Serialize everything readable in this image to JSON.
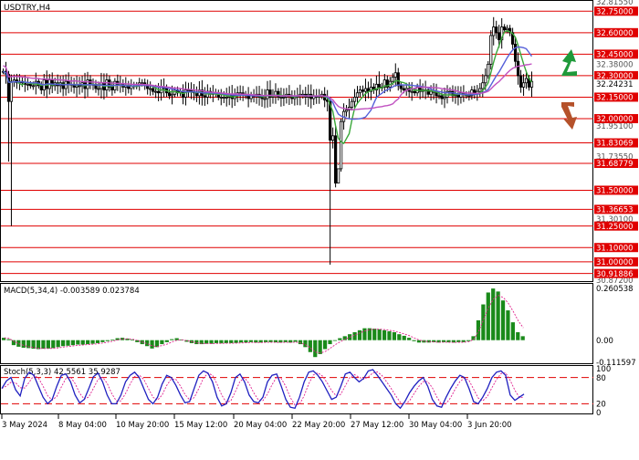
{
  "chart_data": [
    {
      "type": "candlestick",
      "title": "USDTRY,H4",
      "ylim": [
        30.872,
        32.8155
      ],
      "price_axis_ticks": [
        "32.81550",
        "32.38000",
        "31.95100",
        "31.73550",
        "31.30100",
        "30.87200"
      ],
      "level_lines": [
        {
          "value": 32.75,
          "label": "32.75000"
        },
        {
          "value": 32.6,
          "label": "32.60000"
        },
        {
          "value": 32.45,
          "label": "32.45000"
        },
        {
          "value": 32.3,
          "label": "32.30000"
        },
        {
          "value": 32.15,
          "label": "32.15000"
        },
        {
          "value": 32.0,
          "label": "32.00000"
        },
        {
          "value": 31.83069,
          "label": "31.83069"
        },
        {
          "value": 31.68779,
          "label": "31.68779"
        },
        {
          "value": 31.5,
          "label": "31.50000"
        },
        {
          "value": 31.36653,
          "label": "31.36653"
        },
        {
          "value": 31.25,
          "label": "31.25000"
        },
        {
          "value": 31.1,
          "label": "31.10000"
        },
        {
          "value": 31.0,
          "label": "31.00000"
        },
        {
          "value": 30.91886,
          "label": "30.91886"
        }
      ],
      "current_price": {
        "value": 32.24231,
        "label": "32.24231"
      },
      "time_labels": [
        "3 May 2024",
        "8 May 04:00",
        "10 May 20:00",
        "15 May 12:00",
        "20 May 04:00",
        "22 May 20:00",
        "27 May 12:00",
        "30 May 04:00",
        "3 Jun 20:00"
      ],
      "close_values": [
        32.33,
        32.31,
        32.12,
        32.26,
        32.27,
        32.25,
        32.26,
        32.25,
        32.24,
        32.24,
        32.23,
        32.23,
        32.26,
        32.23,
        32.2,
        32.27,
        32.21,
        32.27,
        32.23,
        32.25,
        32.23,
        32.25,
        32.21,
        32.26,
        32.24,
        32.24,
        32.22,
        32.23,
        32.23,
        32.25,
        32.21,
        32.27,
        32.24,
        32.24,
        32.21,
        32.21,
        32.25,
        32.2,
        32.27,
        32.22,
        32.2,
        32.26,
        32.24,
        32.24,
        32.22,
        32.23,
        32.21,
        32.23,
        32.23,
        32.23,
        32.25,
        32.25,
        32.23,
        32.21,
        32.21,
        32.19,
        32.19,
        32.18,
        32.22,
        32.21,
        32.18,
        32.16,
        32.17,
        32.2,
        32.18,
        32.19,
        32.15,
        32.2,
        32.2,
        32.19,
        32.18,
        32.16,
        32.2,
        32.16,
        32.15,
        32.19,
        32.17,
        32.18,
        32.18,
        32.15,
        32.15,
        32.15,
        32.15,
        32.17,
        32.14,
        32.16,
        32.18,
        32.18,
        32.17,
        32.16,
        32.14,
        32.16,
        32.16,
        32.17,
        32.15,
        32.14,
        32.14,
        32.2,
        32.15,
        32.16,
        32.19,
        32.15,
        32.15,
        32.15,
        32.17,
        32.16,
        32.14,
        32.15,
        32.16,
        32.17,
        32.17,
        32.15,
        32.17,
        32.14,
        32.16,
        32.15,
        32.16,
        32.17,
        32.13,
        32.12,
        31.85,
        31.88,
        31.55,
        31.65,
        31.98,
        32.05,
        32.06,
        32.08,
        32.12,
        32.15,
        32.18,
        32.2,
        32.19,
        32.21,
        32.19,
        32.22,
        32.2,
        32.24,
        32.22,
        32.22,
        32.27,
        32.22,
        32.26,
        32.29,
        32.32,
        32.23,
        32.21,
        32.2,
        32.21,
        32.19,
        32.19,
        32.18,
        32.22,
        32.19,
        32.2,
        32.2,
        32.17,
        32.19,
        32.19,
        32.16,
        32.16,
        32.14,
        32.15,
        32.19,
        32.19,
        32.16,
        32.17,
        32.15,
        32.18,
        32.17,
        32.16,
        32.16,
        32.2,
        32.17,
        32.19,
        32.21,
        32.25,
        32.3,
        32.38,
        32.58,
        32.64,
        32.6,
        32.55,
        32.64,
        32.62,
        32.63,
        32.6,
        32.52,
        32.4,
        32.3,
        32.22,
        32.25,
        32.28,
        32.22,
        32.26
      ],
      "moving_averages": [
        {
          "name": "MA fast",
          "color": "#3aa83a"
        },
        {
          "name": "MA mid",
          "color": "#5560d9"
        },
        {
          "name": "MA slow",
          "color": "#c050c0"
        }
      ],
      "arrows": [
        {
          "direction": "up",
          "color": "#1f9a3a"
        },
        {
          "direction": "down",
          "color": "#b5512a"
        }
      ],
      "colors": {
        "level_line": "#e00000",
        "level_label_bg": "#e00000",
        "candle": "#000000"
      }
    },
    {
      "type": "bar",
      "title": "MACD(5,34,4) -0.003589 0.023784",
      "indicator": "MACD",
      "params": "5,34,4",
      "main_value": -0.003589,
      "signal_value": 0.023784,
      "ylim": [
        -0.111597,
        0.260538
      ],
      "axis_labels": [
        "0.260538",
        "0.00",
        "-0.111597"
      ],
      "histogram": [
        0.012,
        0.005,
        -0.025,
        -0.033,
        -0.038,
        -0.04,
        -0.043,
        -0.045,
        -0.043,
        -0.042,
        -0.04,
        -0.035,
        -0.03,
        -0.028,
        -0.025,
        -0.022,
        -0.022,
        -0.02,
        -0.018,
        -0.015,
        -0.01,
        -0.005,
        0.002,
        0.01,
        0.012,
        0.008,
        0.002,
        -0.01,
        -0.02,
        -0.03,
        -0.042,
        -0.035,
        -0.02,
        -0.01,
        0.005,
        0.01,
        0.003,
        -0.008,
        -0.015,
        -0.02,
        -0.02,
        -0.018,
        -0.018,
        -0.015,
        -0.016,
        -0.015,
        -0.015,
        -0.014,
        -0.012,
        -0.012,
        -0.01,
        -0.012,
        -0.012,
        -0.01,
        -0.01,
        -0.011,
        -0.012,
        -0.01,
        -0.012,
        -0.008,
        -0.02,
        -0.035,
        -0.06,
        -0.085,
        -0.07,
        -0.045,
        -0.02,
        0.0,
        0.01,
        0.02,
        0.03,
        0.04,
        0.05,
        0.06,
        0.06,
        0.058,
        0.055,
        0.05,
        0.045,
        0.04,
        0.03,
        0.022,
        0.012,
        -0.005,
        -0.012,
        -0.012,
        -0.012,
        -0.01,
        -0.012,
        -0.01,
        -0.011,
        -0.012,
        -0.01,
        -0.01,
        -0.005,
        0.02,
        0.1,
        0.18,
        0.24,
        0.26,
        0.245,
        0.2,
        0.15,
        0.09,
        0.04,
        0.02
      ],
      "colors": {
        "histogram": "#1a8a1a",
        "signal": "#e0208a"
      }
    },
    {
      "type": "line",
      "title": "Stoch(5,3,3) 42.5561 35.9287",
      "indicator": "Stochastic",
      "params": "5,3,3",
      "main_value": 42.5561,
      "signal_value": 35.9287,
      "ylim": [
        0,
        100
      ],
      "axis_labels": [
        "100",
        "80",
        "20",
        "0"
      ],
      "levels": [
        80,
        20
      ],
      "main_line": [
        55,
        72,
        80,
        52,
        38,
        78,
        92,
        85,
        60,
        35,
        20,
        30,
        60,
        85,
        88,
        70,
        40,
        22,
        30,
        55,
        82,
        90,
        70,
        40,
        20,
        20,
        40,
        70,
        85,
        92,
        80,
        55,
        30,
        20,
        35,
        65,
        85,
        80,
        62,
        40,
        22,
        25,
        55,
        85,
        95,
        90,
        70,
        35,
        15,
        20,
        45,
        80,
        88,
        70,
        40,
        25,
        22,
        35,
        70,
        85,
        88,
        60,
        30,
        12,
        10,
        35,
        70,
        92,
        95,
        85,
        70,
        50,
        30,
        35,
        60,
        88,
        92,
        80,
        70,
        78,
        95,
        98,
        85,
        70,
        55,
        40,
        20,
        10,
        25,
        45,
        60,
        72,
        80,
        60,
        30,
        15,
        12,
        35,
        55,
        72,
        85,
        80,
        55,
        25,
        20,
        35,
        55,
        80,
        92,
        95,
        85,
        40,
        28,
        35,
        42
      ],
      "colors": {
        "main": "#2020c0",
        "signal": "#e02090",
        "level": "#e00000"
      }
    }
  ]
}
